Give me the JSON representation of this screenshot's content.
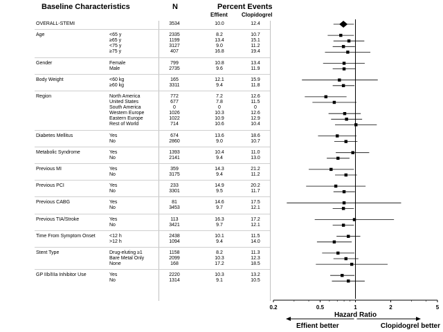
{
  "headers": {
    "characteristics": "Baseline Characteristics",
    "n": "N",
    "percent_events": "Percent Events",
    "effient": "Effient",
    "clopidogrel": "Clopidogrel"
  },
  "groups": [
    {
      "label": "OVERALL-STEMI",
      "rows": [
        {
          "sub": "",
          "n": "3534",
          "effient": "10.0",
          "clop": "12.4",
          "hr": 0.79,
          "lo": 0.65,
          "hi": 0.97,
          "diamond": true
        }
      ]
    },
    {
      "label": "Age",
      "rows": [
        {
          "sub": "<65 y",
          "n": "2335",
          "effient": "8.2",
          "clop": "10.7",
          "hr": 0.75,
          "lo": 0.58,
          "hi": 0.97
        },
        {
          "sub": "≥65 y",
          "n": "1199",
          "effient": "13.4",
          "clop": "15.1",
          "hr": 0.88,
          "lo": 0.65,
          "hi": 1.19
        },
        {
          "sub": "<75 y",
          "n": "3127",
          "effient": "9.0",
          "clop": "11.2",
          "hr": 0.79,
          "lo": 0.64,
          "hi": 0.99
        },
        {
          "sub": "≥75 y",
          "n": "407",
          "effient": "16.8",
          "clop": "19.4",
          "hr": 0.86,
          "lo": 0.55,
          "hi": 1.34
        }
      ]
    },
    {
      "label": "Gender",
      "rows": [
        {
          "sub": "Female",
          "n": "799",
          "effient": "10.8",
          "clop": "13.4",
          "hr": 0.8,
          "lo": 0.53,
          "hi": 1.2
        },
        {
          "sub": "Male",
          "n": "2735",
          "effient": "9.6",
          "clop": "11.9",
          "hr": 0.8,
          "lo": 0.64,
          "hi": 1.0
        }
      ]
    },
    {
      "label": "Body Weight",
      "rows": [
        {
          "sub": "<60 kg",
          "n": "165",
          "effient": "12.1",
          "clop": "15.9",
          "hr": 0.73,
          "lo": 0.35,
          "hi": 1.55
        },
        {
          "sub": "≥60 kg",
          "n": "3311",
          "effient": "9.4",
          "clop": "11.8",
          "hr": 0.79,
          "lo": 0.64,
          "hi": 0.98
        }
      ]
    },
    {
      "label": "Region",
      "rows": [
        {
          "sub": "North America",
          "n": "772",
          "effient": "7.2",
          "clop": "12.6",
          "hr": 0.56,
          "lo": 0.37,
          "hi": 0.84
        },
        {
          "sub": "United States",
          "n": "677",
          "effient": "7.8",
          "clop": "11.5",
          "hr": 0.66,
          "lo": 0.43,
          "hi": 1.02
        },
        {
          "sub": "South America",
          "n": "0",
          "effient": "0",
          "clop": "0",
          "hr": null,
          "lo": null,
          "hi": null
        },
        {
          "sub": "Western Europe",
          "n": "1026",
          "effient": "10.3",
          "clop": "12.6",
          "hr": 0.81,
          "lo": 0.59,
          "hi": 1.11
        },
        {
          "sub": "Eastern Europe",
          "n": "1022",
          "effient": "10.9",
          "clop": "12.9",
          "hr": 0.84,
          "lo": 0.62,
          "hi": 1.14
        },
        {
          "sub": "Rest of World",
          "n": "714",
          "effient": "10.6",
          "clop": "10.4",
          "hr": 1.01,
          "lo": 0.67,
          "hi": 1.52
        }
      ]
    },
    {
      "label": "Diabetes Mellitus",
      "rows": [
        {
          "sub": "Yes",
          "n": "674",
          "effient": "13.6",
          "clop": "18.6",
          "hr": 0.7,
          "lo": 0.48,
          "hi": 1.02
        },
        {
          "sub": "No",
          "n": "2860",
          "effient": "9.0",
          "clop": "10.7",
          "hr": 0.83,
          "lo": 0.66,
          "hi": 1.04
        }
      ]
    },
    {
      "label": "Metabolic Syndrome",
      "rows": [
        {
          "sub": "Yes",
          "n": "1393",
          "effient": "10.4",
          "clop": "11.0",
          "hr": 0.95,
          "lo": 0.68,
          "hi": 1.31
        },
        {
          "sub": "No",
          "n": "2141",
          "effient": "9.4",
          "clop": "13.0",
          "hr": 0.71,
          "lo": 0.57,
          "hi": 0.89
        }
      ]
    },
    {
      "label": "Previous MI",
      "rows": [
        {
          "sub": "Yes",
          "n": "359",
          "effient": "14.3",
          "clop": "21.2",
          "hr": 0.62,
          "lo": 0.4,
          "hi": 0.97
        },
        {
          "sub": "No",
          "n": "3175",
          "effient": "9.4",
          "clop": "11.2",
          "hr": 0.83,
          "lo": 0.67,
          "hi": 1.03
        }
      ]
    },
    {
      "label": "Previous PCI",
      "rows": [
        {
          "sub": "Yes",
          "n": "233",
          "effient": "14.9",
          "clop": "20.2",
          "hr": 0.68,
          "lo": 0.38,
          "hi": 1.22
        },
        {
          "sub": "No",
          "n": "3301",
          "effient": "9.5",
          "clop": "11.7",
          "hr": 0.8,
          "lo": 0.65,
          "hi": 0.99
        }
      ]
    },
    {
      "label": "Previous CABG",
      "rows": [
        {
          "sub": "Yes",
          "n": "81",
          "effient": "14.6",
          "clop": "17.5",
          "hr": 0.8,
          "lo": 0.26,
          "hi": 2.45
        },
        {
          "sub": "No",
          "n": "3453",
          "effient": "9.7",
          "clop": "12.1",
          "hr": 0.79,
          "lo": 0.64,
          "hi": 0.97
        }
      ]
    },
    {
      "label": "Previous TIA/Stroke",
      "rows": [
        {
          "sub": "Yes",
          "n": "113",
          "effient": "16.3",
          "clop": "17.2",
          "hr": 0.98,
          "lo": 0.45,
          "hi": 2.13
        },
        {
          "sub": "No",
          "n": "3421",
          "effient": "9.7",
          "clop": "12.1",
          "hr": 0.79,
          "lo": 0.64,
          "hi": 0.97
        }
      ]
    },
    {
      "label": "Time From Symptom Onset",
      "rows": [
        {
          "sub": "<12 h",
          "n": "2438",
          "effient": "10.1",
          "clop": "11.5",
          "hr": 0.87,
          "lo": 0.69,
          "hi": 1.1
        },
        {
          "sub": ">12 h",
          "n": "1094",
          "effient": "9.4",
          "clop": "14.0",
          "hr": 0.66,
          "lo": 0.47,
          "hi": 0.93
        }
      ]
    },
    {
      "label": "Stent Type",
      "rows": [
        {
          "sub": "Drug-eluting ≥1",
          "n": "1158",
          "effient": "8.2",
          "clop": "11.3",
          "hr": 0.71,
          "lo": 0.52,
          "hi": 0.98
        },
        {
          "sub": "Bare Metal Only",
          "n": "2099",
          "effient": "10.3",
          "clop": "12.3",
          "hr": 0.83,
          "lo": 0.65,
          "hi": 1.06
        },
        {
          "sub": "None",
          "n": "168",
          "effient": "17.2",
          "clop": "18.5",
          "hr": 0.93,
          "lo": 0.46,
          "hi": 1.88
        }
      ]
    },
    {
      "label": "GP IIb/IIIa Inhibitor Use",
      "rows": [
        {
          "sub": "Yes",
          "n": "2220",
          "effient": "10.3",
          "clop": "13.2",
          "hr": 0.77,
          "lo": 0.61,
          "hi": 0.98
        },
        {
          "sub": "No",
          "n": "1314",
          "effient": "9.1",
          "clop": "10.5",
          "hr": 0.87,
          "lo": 0.63,
          "hi": 1.2
        }
      ]
    }
  ],
  "chart_data": {
    "type": "forest",
    "title": "Baseline Characteristics",
    "xlabel": "Hazard Ratio",
    "xscale": "log",
    "xlim": [
      0.2,
      5
    ],
    "xticks": [
      0.2,
      0.5,
      1,
      2,
      5
    ],
    "xtick_labels": [
      "0.2",
      "0.5",
      "1",
      "2",
      "5"
    ],
    "reference_line": 1,
    "left_annotation": "Effient better",
    "right_annotation": "Clopidogrel better",
    "series": [
      {
        "name": "Hazard Ratio (95% CI)",
        "source": "groups[].rows[].hr / lo / hi"
      }
    ]
  }
}
